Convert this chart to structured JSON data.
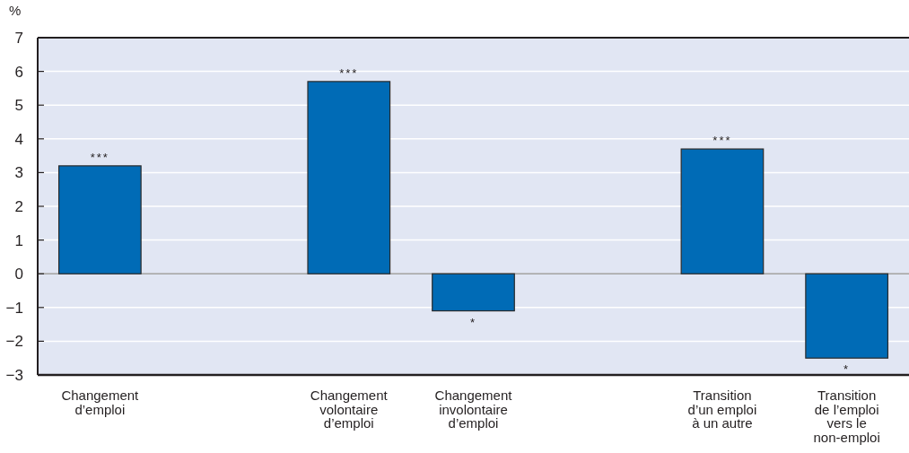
{
  "chart_data": {
    "type": "bar",
    "ylabel": "%",
    "categories": [
      "Changement d’emploi",
      null,
      "Changement volontaire d’emploi",
      "Changement involontaire d’emploi",
      null,
      "Transition d’un emploi à un autre",
      "Transition de l’emploi vers le non-emploi"
    ],
    "values": [
      3.2,
      null,
      5.7,
      -1.1,
      null,
      3.7,
      -2.5
    ],
    "color": "#006bb6",
    "ylim": [
      -3,
      7
    ],
    "yticks": [
      {
        "value": -3,
        "label": "−3"
      },
      {
        "value": -2,
        "label": "−2"
      },
      {
        "value": -1,
        "label": "−1"
      },
      0,
      1,
      2,
      3,
      4,
      5,
      6,
      7
    ],
    "grid": "y",
    "annotations": [
      {
        "text": "***",
        "x": "Changement d’emploi",
        "y": 3.2
      },
      {
        "text": "***",
        "x": "Changement volontaire d’emploi",
        "y": 5.7
      },
      {
        "text": "*",
        "x": "Changement involontaire d’emploi",
        "y": -1.1
      },
      {
        "text": "***",
        "x": "Transition d’un emploi à un autre",
        "y": 3.7
      },
      {
        "text": "*",
        "x": "Transition de l’emploi vers le non-emploi",
        "y": -2.5
      }
    ]
  }
}
